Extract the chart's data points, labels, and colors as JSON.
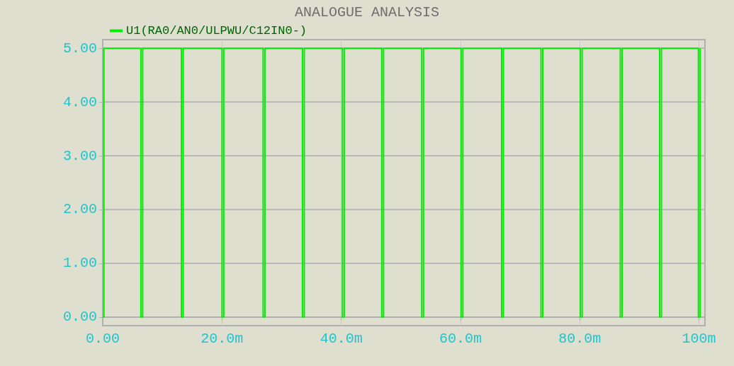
{
  "chart_data": {
    "type": "line",
    "title": "ANALOGUE ANALYSIS",
    "x": [
      0,
      0.2,
      0.2,
      6.4,
      6.4,
      6.7,
      6.7,
      13.2,
      13.2,
      13.5,
      13.5,
      20,
      20,
      20.3,
      20.3,
      26.9,
      26.9,
      27.2,
      27.2,
      33.5,
      33.5,
      33.8,
      33.8,
      40.2,
      40.2,
      40.5,
      40.5,
      46.8,
      46.8,
      47.1,
      47.1,
      53.5,
      53.5,
      53.8,
      53.8,
      60.1,
      60.1,
      60.4,
      60.4,
      66.9,
      66.9,
      67.2,
      67.2,
      73.5,
      73.5,
      73.8,
      73.8,
      80.1,
      80.1,
      80.4,
      80.4,
      86.8,
      86.8,
      87.1,
      87.1,
      93.4,
      93.4,
      93.7,
      93.7,
      99.9,
      99.9,
      100.2,
      100.2
    ],
    "series": [
      {
        "name": "U1(RA0/AN0/ULPWU/C12IN0-)",
        "color": "#00ee00",
        "values": [
          0,
          0,
          5,
          5,
          0,
          0,
          5,
          5,
          0,
          0,
          5,
          5,
          0,
          0,
          5,
          5,
          0,
          0,
          5,
          5,
          0,
          0,
          5,
          5,
          0,
          0,
          5,
          5,
          0,
          0,
          5,
          5,
          0,
          0,
          5,
          5,
          0,
          0,
          5,
          5,
          0,
          0,
          5,
          5,
          0,
          0,
          5,
          5,
          0,
          0,
          5,
          5,
          0,
          0,
          5,
          5,
          0,
          0,
          5,
          5,
          0,
          0,
          5
        ]
      }
    ],
    "xlim": [
      0,
      101
    ],
    "xticks": [
      {
        "value": 0,
        "label": "0.00"
      },
      {
        "value": 20,
        "label": "20.0m"
      },
      {
        "value": 40,
        "label": "40.0m"
      },
      {
        "value": 60,
        "label": "60.0m"
      },
      {
        "value": 80,
        "label": "80.0m"
      },
      {
        "value": 100,
        "label": "100m"
      }
    ],
    "ylim": [
      -0.16,
      5.16
    ],
    "yticks": [
      {
        "value": 0,
        "label": "0.00"
      },
      {
        "value": 1,
        "label": "1.00"
      },
      {
        "value": 2,
        "label": "2.00"
      },
      {
        "value": 3,
        "label": "3.00"
      },
      {
        "value": 4,
        "label": "4.00"
      },
      {
        "value": 5,
        "label": "5.00"
      }
    ],
    "grid": true,
    "legend": "top left",
    "marker": "none",
    "line_style": "solid"
  }
}
